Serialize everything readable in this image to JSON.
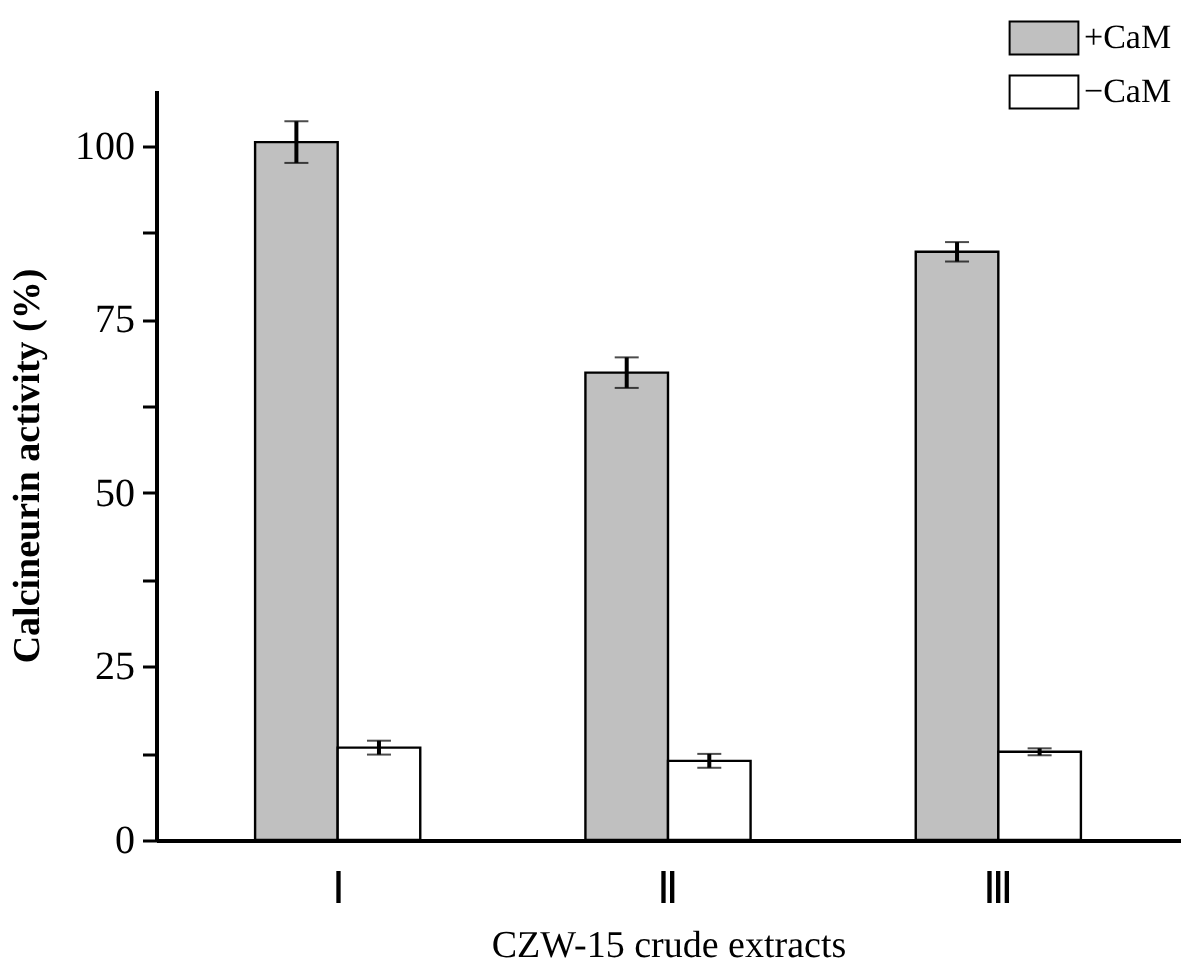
{
  "chart_data": {
    "type": "bar",
    "xlabel": "CZW-15 crude extracts",
    "ylabel": "Calcineurin activity (%)",
    "categories": [
      "Ⅰ",
      "Ⅱ",
      "Ⅲ"
    ],
    "series": [
      {
        "name": "+CaM",
        "color": "#c0c0c0",
        "values": [
          100.5,
          67.3,
          84.7
        ],
        "errors": [
          3,
          2.2,
          1.4
        ]
      },
      {
        "name": "−CaM",
        "color": "#ffffff",
        "values": [
          13.3,
          11.4,
          12.7
        ],
        "errors": [
          1,
          1,
          0.5
        ]
      }
    ],
    "ylim": [
      0,
      108
    ],
    "yticks": [
      0,
      {
        "value": 12.5,
        "label": null
      },
      25,
      {
        "value": 37.5,
        "label": null
      },
      50,
      {
        "value": 62.5,
        "label": null
      },
      75,
      {
        "value": 87.5,
        "label": null
      },
      100
    ],
    "grid": false,
    "legend": "top right"
  }
}
